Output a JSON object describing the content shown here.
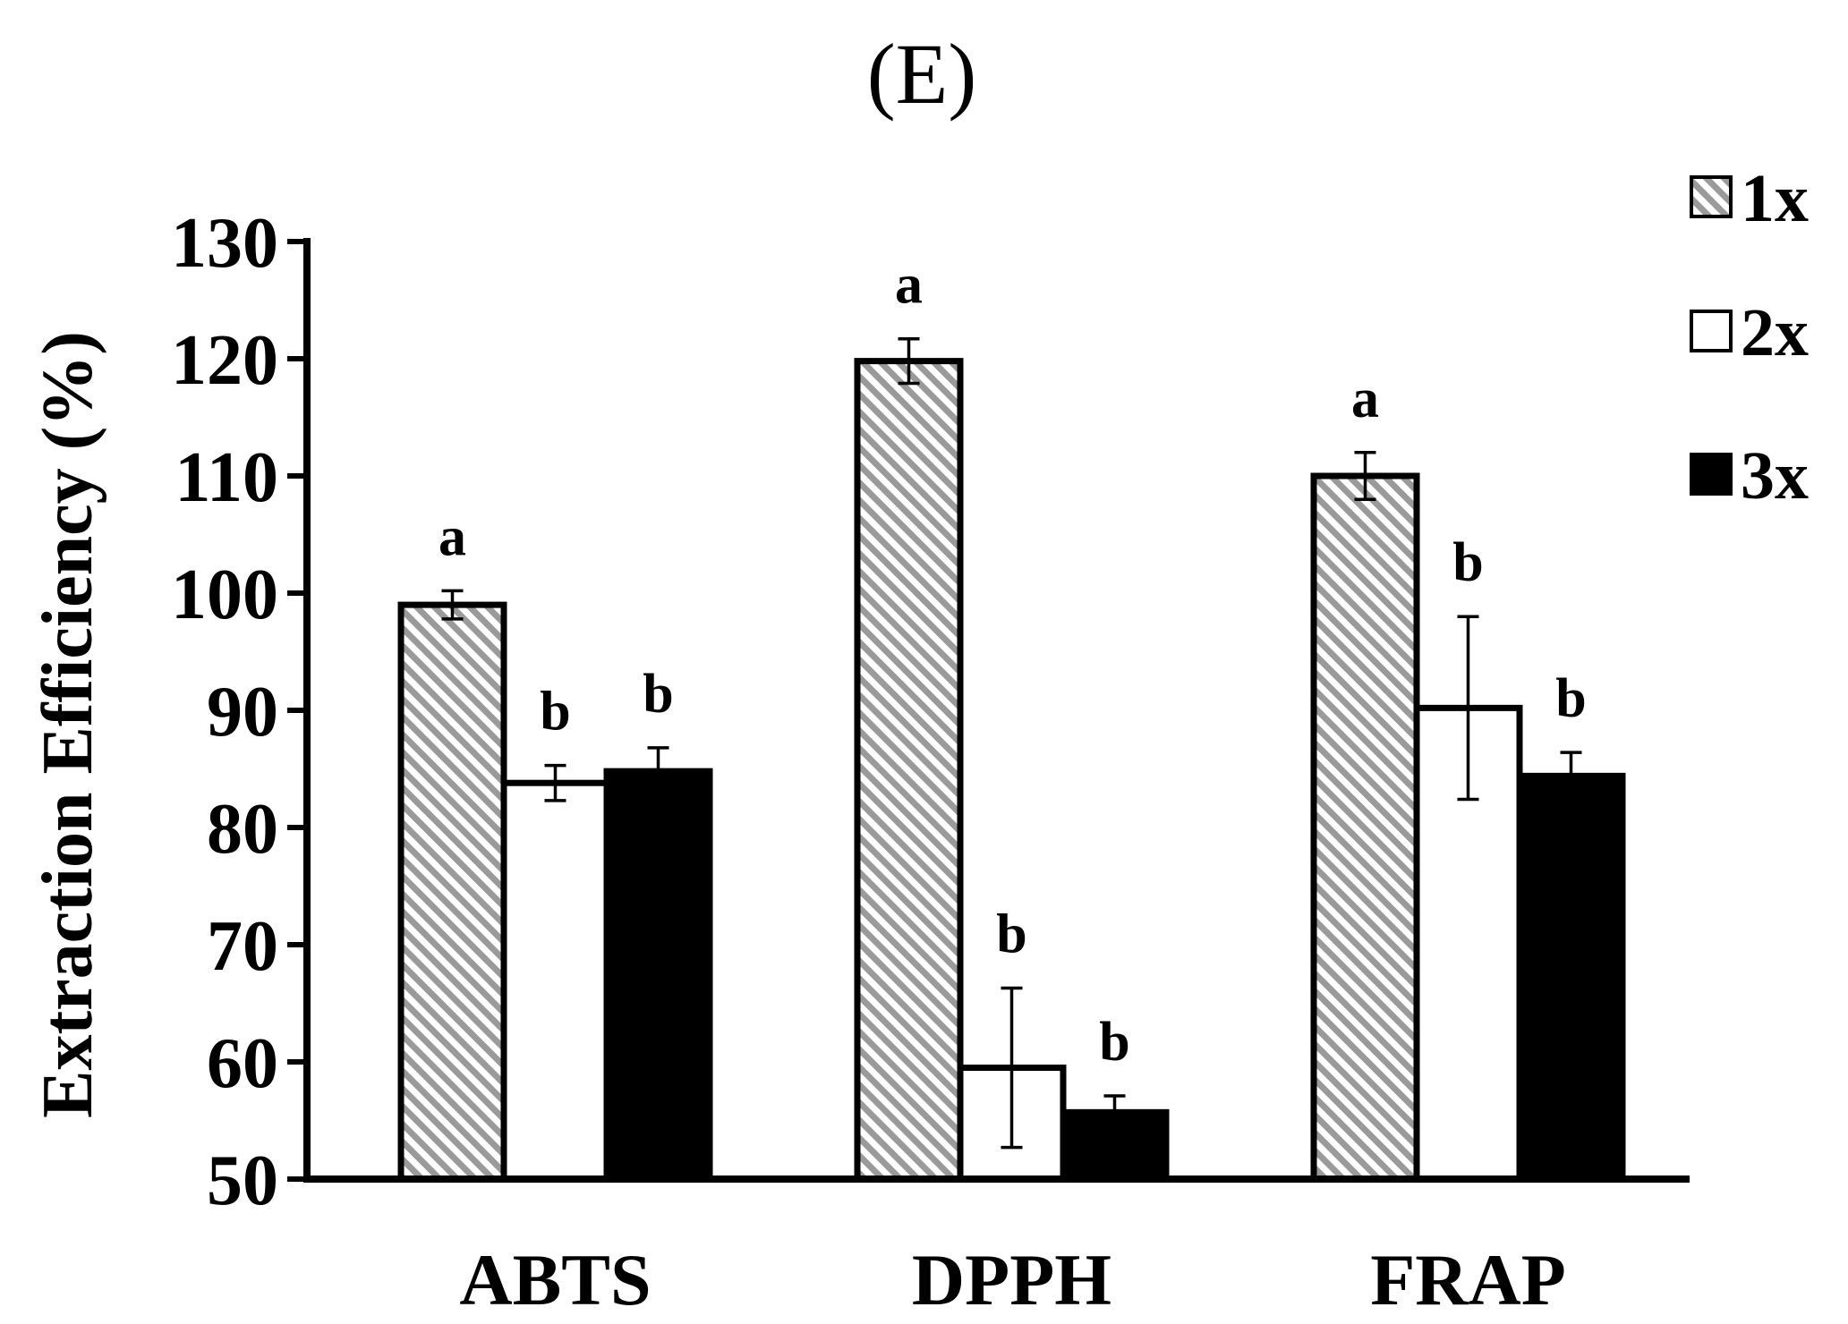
{
  "chart_data": {
    "type": "bar",
    "title": "(E)",
    "xlabel": "",
    "ylabel": "Extraction Efficiency (%)",
    "ylim": [
      50,
      130
    ],
    "yticks": [
      50,
      60,
      70,
      80,
      90,
      100,
      110,
      120,
      130
    ],
    "grid": false,
    "legend_position": "top-right",
    "categories": [
      "ABTS",
      "DPPH",
      "FRAP"
    ],
    "series": [
      {
        "name": "1x",
        "fill": "hatched-gray",
        "values": [
          99,
          119.8,
          110
        ],
        "errors": [
          1.2,
          1.9,
          2.0
        ],
        "letters": [
          "a",
          "a",
          "a"
        ]
      },
      {
        "name": "2x",
        "fill": "white",
        "values": [
          83.8,
          59.5,
          90.2
        ],
        "errors": [
          1.5,
          6.8,
          7.8
        ],
        "letters": [
          "b",
          "b",
          "b"
        ]
      },
      {
        "name": "3x",
        "fill": "black",
        "values": [
          84.8,
          55.7,
          84.4
        ],
        "errors": [
          2.0,
          1.4,
          2.0
        ],
        "letters": [
          "b",
          "b",
          "b"
        ]
      }
    ],
    "colors": {
      "hatch_stripe": "#9a9a9a",
      "hatch_bg": "#ffffff",
      "solid": "#000000",
      "axis": "#000000"
    }
  }
}
